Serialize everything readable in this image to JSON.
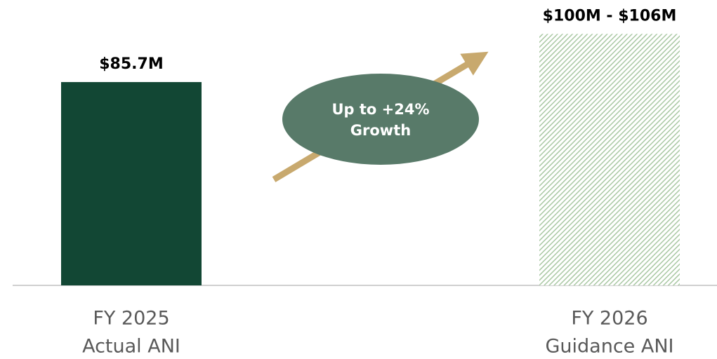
{
  "chart_data": {
    "type": "bar",
    "categories": [
      [
        "FY 2025",
        "Actual ANI"
      ],
      [
        "FY 2026",
        "Guidance ANI"
      ]
    ],
    "values": [
      85.7,
      106
    ],
    "value_labels": [
      "$85.7M",
      "$100M - $106M"
    ],
    "colors": [
      "#124734",
      "#c3d9bf"
    ],
    "hatch": [
      false,
      true
    ],
    "annotation": [
      "Up to +24%",
      "Growth"
    ],
    "ylim": [
      0,
      120
    ]
  }
}
